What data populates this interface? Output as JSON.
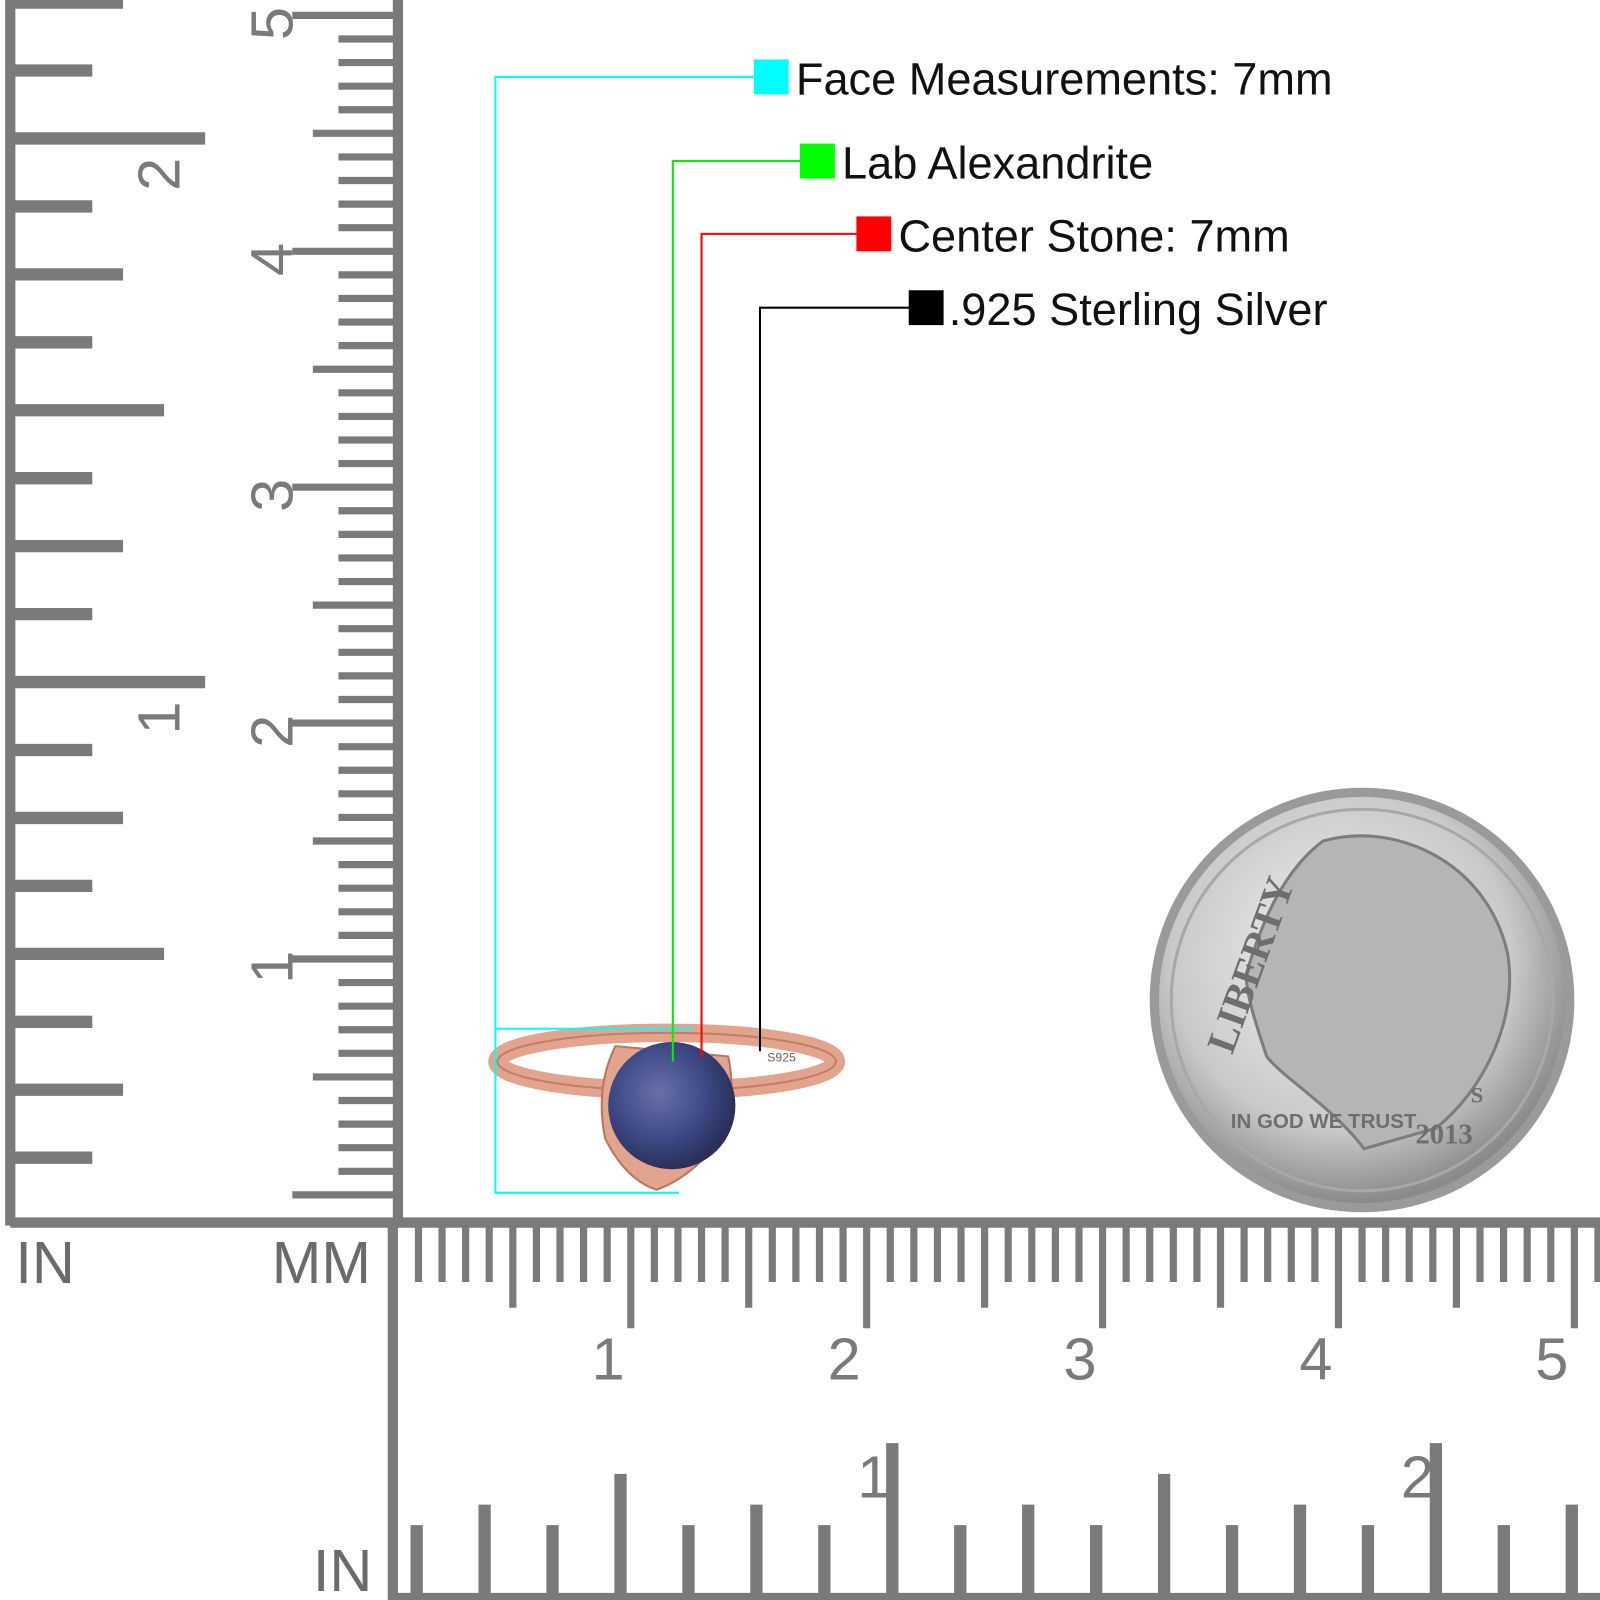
{
  "legend": [
    {
      "label": "Face Measurements: 7mm",
      "color": "#00ffff"
    },
    {
      "label": "Lab Alexandrite",
      "color": "#00ff00"
    },
    {
      "label": "Center Stone: 7mm",
      "color": "#ff0000"
    },
    {
      "label": ".925 Sterling Silver",
      "color": "#000000"
    }
  ],
  "rulers": {
    "left_in_label": "IN",
    "left_mm_label": "MM",
    "bottom_in_label": "IN",
    "vertical_mm_labels": [
      "1",
      "2",
      "3",
      "4",
      "5"
    ],
    "vertical_in_labels": [
      "1",
      "2"
    ],
    "horizontal_mm_labels": [
      "1",
      "2",
      "3",
      "4",
      "5"
    ],
    "horizontal_in_labels": [
      "1",
      "2"
    ],
    "ruler_color": "#7a7a7a"
  },
  "ring": {
    "metal_color": "#e3a48e",
    "stone_color": "#3e4a86",
    "stamp": "S925"
  },
  "coin": {
    "motto_top": "LIBERTY",
    "motto": "IN GOD WE TRUST",
    "year": "2013",
    "mint": "S"
  }
}
